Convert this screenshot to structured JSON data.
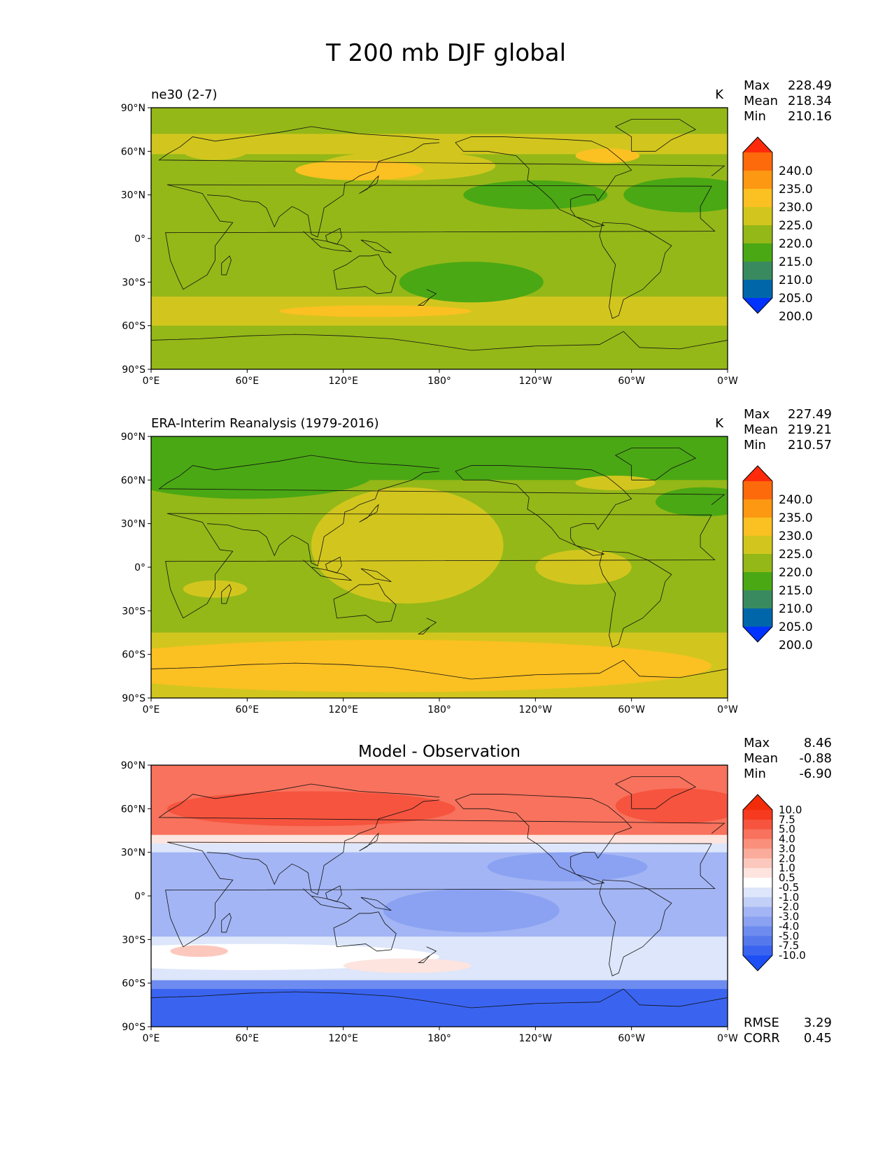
{
  "figure": {
    "title": "T 200 mb DJF global"
  },
  "axes": {
    "lat_ticks": [
      "90°N",
      "60°N",
      "30°N",
      "0°",
      "30°S",
      "60°S",
      "90°S"
    ],
    "lon_ticks": [
      "0°E",
      "60°E",
      "120°E",
      "180°",
      "120°W",
      "60°W",
      "0°W"
    ]
  },
  "panels": [
    {
      "id": "model",
      "label_left": "ne30 (2-7)",
      "label_center": "",
      "units": "K",
      "stats": [
        {
          "label": "Max",
          "value": "228.49"
        },
        {
          "label": "Mean",
          "value": "218.34"
        },
        {
          "label": "Min",
          "value": "210.16"
        }
      ],
      "colorbar_ticks": [
        "240.0",
        "235.0",
        "230.0",
        "225.0",
        "220.0",
        "215.0",
        "210.0",
        "205.0",
        "200.0"
      ]
    },
    {
      "id": "obs",
      "label_left": "ERA-Interim Reanalysis (1979-2016)",
      "label_center": "",
      "units": "K",
      "stats": [
        {
          "label": "Max",
          "value": "227.49"
        },
        {
          "label": "Mean",
          "value": "219.21"
        },
        {
          "label": "Min",
          "value": "210.57"
        }
      ],
      "colorbar_ticks": [
        "240.0",
        "235.0",
        "230.0",
        "225.0",
        "220.0",
        "215.0",
        "210.0",
        "205.0",
        "200.0"
      ]
    },
    {
      "id": "diff",
      "label_left": "",
      "label_center": "Model - Observation",
      "units": "",
      "stats": [
        {
          "label": "Max",
          "value": "8.46"
        },
        {
          "label": "Mean",
          "value": "-0.88"
        },
        {
          "label": "Min",
          "value": "-6.90"
        }
      ],
      "colorbar_ticks": [
        "10.0",
        "7.5",
        "5.0",
        "4.0",
        "3.0",
        "2.0",
        "1.0",
        "0.5",
        "-0.5",
        "-1.0",
        "-2.0",
        "-3.0",
        "-4.0",
        "-5.0",
        "-7.5",
        "-10.0"
      ],
      "metrics": [
        {
          "label": "RMSE",
          "value": "3.29"
        },
        {
          "label": "CORR",
          "value": "0.45"
        }
      ]
    }
  ],
  "colors": {
    "abs_levels": [
      "#0033ff",
      "#0066aa",
      "#3a8a60",
      "#4aa814",
      "#94b818",
      "#d2c61e",
      "#fbc022",
      "#fc9812",
      "#fd6a0c",
      "#ff2a0a"
    ],
    "diff_levels": [
      "#1d4ff5",
      "#3a64f0",
      "#5578ec",
      "#6e8cf0",
      "#8ba2f2",
      "#a3b5f4",
      "#c2cff6",
      "#dde6fa",
      "#ffffff",
      "#fde4df",
      "#fcc8bd",
      "#fbab9b",
      "#fa907c",
      "#f8725d",
      "#f6543e",
      "#f53a1f",
      "#f22b0a"
    ]
  }
}
